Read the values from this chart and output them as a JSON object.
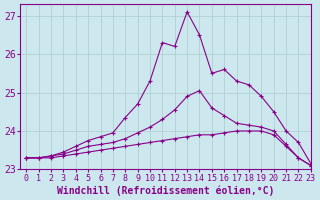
{
  "xlabel": "Windchill (Refroidissement éolien,°C)",
  "background_color": "#cce8ee",
  "line_color": "#880088",
  "grid_color": "#aacccc",
  "x": [
    0,
    1,
    2,
    3,
    4,
    5,
    6,
    7,
    8,
    9,
    10,
    11,
    12,
    13,
    14,
    15,
    16,
    17,
    18,
    19,
    20,
    21,
    22,
    23
  ],
  "line1": [
    23.3,
    23.3,
    23.3,
    23.35,
    23.4,
    23.45,
    23.5,
    23.55,
    23.6,
    23.65,
    23.7,
    23.75,
    23.8,
    23.85,
    23.9,
    23.9,
    23.95,
    24.0,
    24.0,
    24.0,
    23.9,
    23.6,
    23.3,
    23.1
  ],
  "line2": [
    23.3,
    23.3,
    23.35,
    23.4,
    23.5,
    23.6,
    23.65,
    23.7,
    23.8,
    23.95,
    24.1,
    24.3,
    24.55,
    24.9,
    25.05,
    24.6,
    24.4,
    24.2,
    24.15,
    24.1,
    24.0,
    23.65,
    23.3,
    23.1
  ],
  "line3": [
    23.3,
    23.3,
    23.35,
    23.45,
    23.6,
    23.75,
    23.85,
    23.95,
    24.35,
    24.7,
    25.3,
    26.3,
    26.2,
    27.1,
    26.5,
    25.5,
    25.6,
    25.3,
    25.2,
    24.9,
    24.5,
    24.0,
    23.7,
    23.15
  ],
  "ylim": [
    23.0,
    27.3
  ],
  "xlim": [
    -0.5,
    23
  ],
  "yticks": [
    23,
    24,
    25,
    26,
    27
  ],
  "xticks": [
    0,
    1,
    2,
    3,
    4,
    5,
    6,
    7,
    8,
    9,
    10,
    11,
    12,
    13,
    14,
    15,
    16,
    17,
    18,
    19,
    20,
    21,
    22,
    23
  ],
  "tick_fontsize": 6,
  "label_fontsize": 7
}
